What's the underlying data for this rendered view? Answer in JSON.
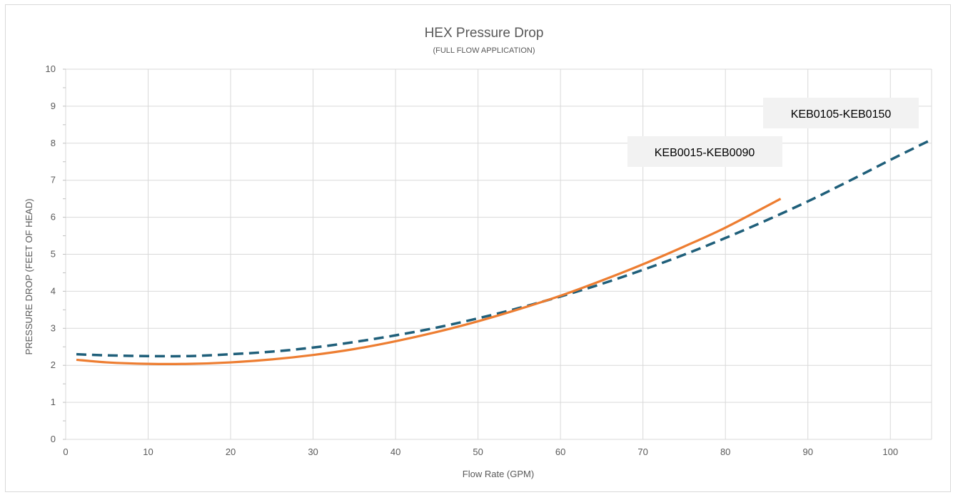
{
  "chart_data": {
    "type": "line",
    "title": "HEX Pressure Drop",
    "subtitle": "(FULL FLOW APPLICATION)",
    "xlabel": "Flow Rate (GPM)",
    "ylabel": "PRESSURE DROP (FEET OF HEAD)",
    "xlim": [
      0,
      105
    ],
    "ylim": [
      0,
      10
    ],
    "x_ticks": [
      "0",
      "10",
      "20",
      "30",
      "40",
      "50",
      "60",
      "70",
      "80",
      "90",
      "100"
    ],
    "y_ticks": [
      "0",
      "1",
      "2",
      "3",
      "4",
      "5",
      "6",
      "7",
      "8",
      "9",
      "10"
    ],
    "grid": true,
    "legend": "none",
    "series": [
      {
        "name": "KEB0015-KEB0090",
        "color": "#ED7D31",
        "style": "solid",
        "x": [
          1.3,
          5,
          10,
          15,
          20,
          25,
          30,
          35,
          40,
          45,
          50,
          55,
          60,
          65,
          70,
          75,
          80,
          86.7
        ],
        "y": [
          2.15,
          2.08,
          2.04,
          2.04,
          2.08,
          2.16,
          2.28,
          2.44,
          2.65,
          2.9,
          3.19,
          3.52,
          3.88,
          4.29,
          4.73,
          5.21,
          5.72,
          6.5
        ]
      },
      {
        "name": "KEB0105-KEB0150",
        "color": "#1F5F7A",
        "style": "dashed",
        "x": [
          1.3,
          5,
          10,
          15,
          20,
          25,
          30,
          35,
          40,
          45,
          50,
          55,
          60,
          65,
          70,
          75,
          80,
          85,
          90,
          95,
          100,
          105
        ],
        "y": [
          2.3,
          2.27,
          2.25,
          2.25,
          2.3,
          2.37,
          2.48,
          2.63,
          2.81,
          3.02,
          3.27,
          3.55,
          3.86,
          4.2,
          4.58,
          4.99,
          5.44,
          5.92,
          6.43,
          6.98,
          7.55,
          8.1
        ]
      }
    ],
    "annotations": [
      {
        "text": "KEB0015-KEB0090",
        "box_color": "#F2F2F2"
      },
      {
        "text": "KEB0105-KEB0150",
        "box_color": "#F2F2F2"
      }
    ]
  }
}
